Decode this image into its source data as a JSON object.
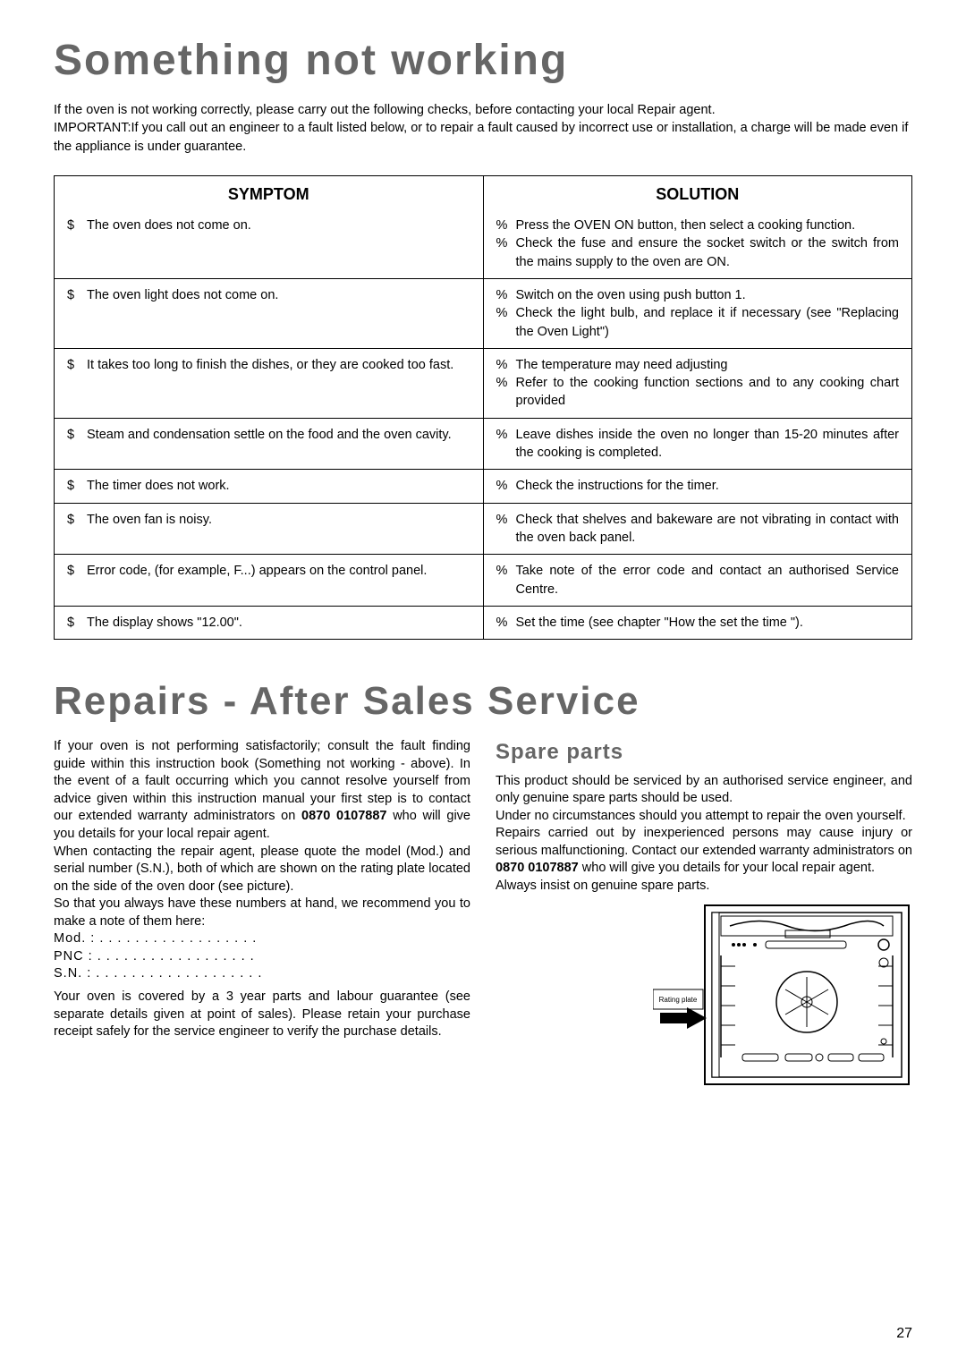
{
  "h1": "Something  not  working",
  "intro_line1": "If the oven is not working correctly, please carry out the following checks, before contacting your local Repair agent.",
  "intro_label": "IMPORTANT:",
  "intro_line2": "If you call out an engineer to a fault listed below, or to repair a fault caused by incorrect use or installation, a charge will be made even if the appliance is under guarantee.",
  "table": {
    "symptom_header": "SYMPTOM",
    "solution_header": "SOLUTION",
    "bullet_sym": "$",
    "bullet_sol": "%",
    "rows": [
      {
        "symptom": "The oven does not come on.",
        "solutions": [
          "Press the OVEN ON button, then select a cooking function.",
          "Check the fuse and ensure the socket switch or the switch from the mains supply to the oven are ON."
        ]
      },
      {
        "symptom": "The oven light does not come on.",
        "solutions": [
          "Switch on the oven using push button 1.",
          "Check the light bulb, and replace it if necessary (see \"Replacing the Oven Light\")"
        ]
      },
      {
        "symptom": "It takes too long to finish the dishes, or they are cooked too fast.",
        "solutions": [
          "The temperature may need adjusting",
          "Refer to the cooking function sections and to any cooking chart provided"
        ]
      },
      {
        "symptom": "Steam and condensation settle on the food and the oven cavity.",
        "solutions": [
          "Leave dishes inside the oven no longer than 15-20 minutes after the cooking is completed."
        ]
      },
      {
        "symptom": "The timer does not work.",
        "solutions": [
          "Check the instructions for the timer."
        ]
      },
      {
        "symptom": "The oven fan is noisy.",
        "solutions": [
          "Check that shelves and bakeware are not vibrating in contact with the oven back panel."
        ]
      },
      {
        "symptom": "Error code, (for example, F...) appears on the control panel.",
        "solutions": [
          "Take note of the error code and contact an authorised Service Centre."
        ]
      },
      {
        "symptom": "The display shows \"12.00\".",
        "solutions": [
          "Set the time  (see chapter \"How the set the time \")."
        ]
      }
    ]
  },
  "h2": "Repairs - After Sales Service",
  "repairs_col1": {
    "p1a": "If your oven is not performing satisfactorily; consult the fault finding guide within this instruction book (Something not working - above). In the event of a fault occurring which you cannot resolve yourself from advice given within this instruction manual your first step is to contact our extended warranty administrators on ",
    "phone": "0870 0107887",
    "p1b": " who will give you details for your local repair agent.",
    "p2": "When contacting the repair agent, please quote the model (Mod.) and serial number (S.N.), both of which are shown on the rating plate located on the side of the oven door (see picture).",
    "p3": "So that you always have these numbers at hand, we recommend you to make a note of them here:",
    "mod": "Mod. : . . . . . . . . . . . . . . . . . .",
    "pnc": "PNC : . . . . . . . . . . . . . . . . . .",
    "sn": "S.N. : . . . . . . . . . . . . . . . . . . .",
    "p4": "Your oven is covered by a 3 year parts and labour guarantee (see separate details given at point of sales). Please retain your purchase receipt safely for the service engineer to verify the purchase details."
  },
  "repairs_col2": {
    "h3": "Spare parts",
    "p1": "This product should be serviced by an authorised service engineer, and only genuine spare parts should be used.",
    "p2": "Under no circumstances should you attempt to repair the oven yourself.",
    "p3a": "Repairs carried out by inexperienced persons may cause injury or serious malfunctioning. Contact our extended warranty administrators on ",
    "phone": "0870 0107887",
    "p3b": " who will give you details for your local repair agent.",
    "p4": "Always insist on genuine spare parts.",
    "rating_label": "Rating plate"
  },
  "page_number": "27"
}
